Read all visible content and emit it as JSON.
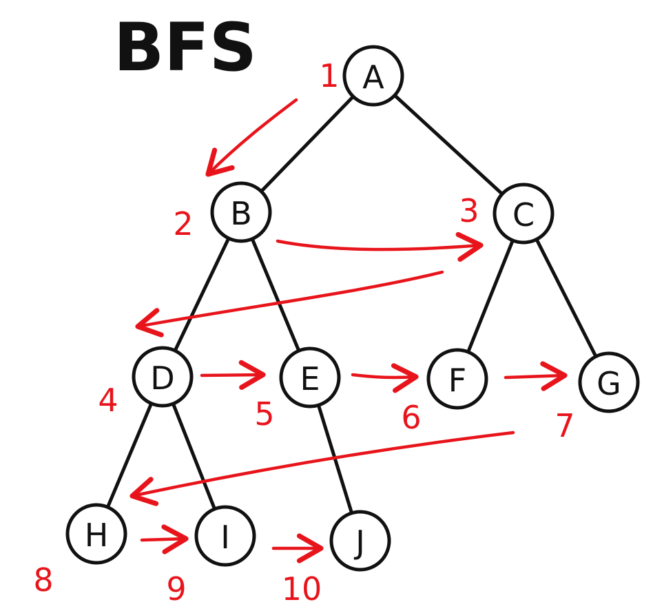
{
  "title": "BFS",
  "colors": {
    "traversal": "#e8141b",
    "ink": "#111111"
  },
  "nodes": [
    {
      "id": "A",
      "label": "A"
    },
    {
      "id": "B",
      "label": "B"
    },
    {
      "id": "C",
      "label": "C"
    },
    {
      "id": "D",
      "label": "D"
    },
    {
      "id": "E",
      "label": "E"
    },
    {
      "id": "F",
      "label": "F"
    },
    {
      "id": "G",
      "label": "G"
    },
    {
      "id": "H",
      "label": "H"
    },
    {
      "id": "I",
      "label": "I"
    },
    {
      "id": "J",
      "label": "J"
    }
  ],
  "edges": [
    [
      "A",
      "B"
    ],
    [
      "A",
      "C"
    ],
    [
      "B",
      "D"
    ],
    [
      "B",
      "E"
    ],
    [
      "C",
      "F"
    ],
    [
      "C",
      "G"
    ],
    [
      "D",
      "H"
    ],
    [
      "D",
      "I"
    ],
    [
      "E",
      "J"
    ]
  ],
  "visit_order": [
    {
      "node": "A",
      "number": "1"
    },
    {
      "node": "B",
      "number": "2"
    },
    {
      "node": "C",
      "number": "3"
    },
    {
      "node": "D",
      "number": "4"
    },
    {
      "node": "E",
      "number": "5"
    },
    {
      "node": "F",
      "number": "6"
    },
    {
      "node": "G",
      "number": "7"
    },
    {
      "node": "H",
      "number": "8"
    },
    {
      "node": "I",
      "number": "9"
    },
    {
      "node": "J",
      "number": "10"
    }
  ],
  "traversal_arrows": [
    [
      "A",
      "B"
    ],
    [
      "B",
      "C"
    ],
    [
      "C",
      "D"
    ],
    [
      "D",
      "E"
    ],
    [
      "E",
      "F"
    ],
    [
      "F",
      "G"
    ],
    [
      "G",
      "H"
    ],
    [
      "H",
      "I"
    ],
    [
      "I",
      "J"
    ]
  ]
}
